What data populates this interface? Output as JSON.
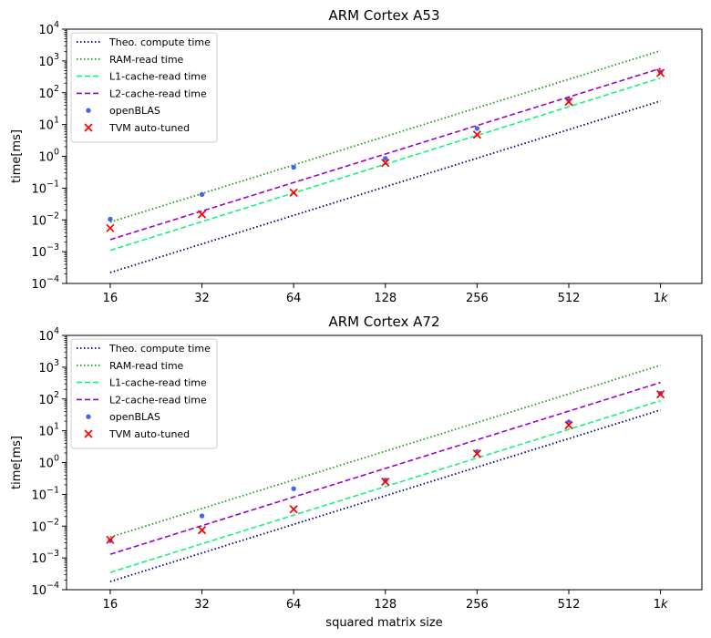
{
  "chart_data": [
    {
      "type": "line",
      "title": "ARM Cortex A53",
      "xlabel": "",
      "ylabel": "time[ms]",
      "x_scale": "log2",
      "y_scale": "log10",
      "x_ticks": [
        16,
        32,
        64,
        128,
        256,
        512,
        1024
      ],
      "x_tick_labels": [
        "16",
        "32",
        "64",
        "128",
        "256",
        "512",
        "1k"
      ],
      "y_ticks": [
        -4,
        -3,
        -2,
        -1,
        0,
        1,
        2,
        3,
        4
      ],
      "y_tick_labels": [
        "10^-4",
        "10^-3",
        "10^-2",
        "10^-1",
        "10^0",
        "10^1",
        "10^2",
        "10^3",
        "10^4"
      ],
      "xlim": [
        11.5,
        1400
      ],
      "ylim": [
        0.0001,
        10000
      ],
      "legend_position": "top-left",
      "grid": false,
      "series": [
        {
          "name": "Theo. compute time",
          "style": "dotted",
          "color": "#00007a",
          "x": [
            16,
            1024
          ],
          "y": [
            0.00022,
            55
          ]
        },
        {
          "name": "RAM-read time",
          "style": "dotted",
          "color": "#1a9c1a",
          "x": [
            16,
            1024
          ],
          "y": [
            0.0085,
            2100
          ]
        },
        {
          "name": "L1-cache-read time",
          "style": "dashed",
          "color": "#16f27e",
          "x": [
            16,
            1024
          ],
          "y": [
            0.0011,
            290
          ]
        },
        {
          "name": "L2-cache-read time",
          "style": "dashed",
          "color": "#9b00d3",
          "x": [
            16,
            1024
          ],
          "y": [
            0.0024,
            580
          ]
        },
        {
          "name": "openBLAS",
          "style": "dots",
          "color": "#4169e1",
          "x": [
            16,
            32,
            64,
            128,
            256,
            512,
            1024
          ],
          "y": [
            0.0105,
            0.063,
            0.45,
            0.85,
            7.5,
            60,
            450
          ]
        },
        {
          "name": "TVM auto-tuned",
          "style": "x-markers",
          "color": "#ff0000",
          "x": [
            16,
            32,
            64,
            128,
            256,
            512,
            1024
          ],
          "y": [
            0.0055,
            0.015,
            0.072,
            0.62,
            4.8,
            52,
            420
          ]
        }
      ]
    },
    {
      "type": "line",
      "title": "ARM Cortex A72",
      "xlabel": "squared matrix size",
      "ylabel": "time[ms]",
      "x_scale": "log2",
      "y_scale": "log10",
      "x_ticks": [
        16,
        32,
        64,
        128,
        256,
        512,
        1024
      ],
      "x_tick_labels": [
        "16",
        "32",
        "64",
        "128",
        "256",
        "512",
        "1k"
      ],
      "y_ticks": [
        -4,
        -3,
        -2,
        -1,
        0,
        1,
        2,
        3,
        4
      ],
      "y_tick_labels": [
        "10^-4",
        "10^-3",
        "10^-2",
        "10^-1",
        "10^0",
        "10^1",
        "10^2",
        "10^3",
        "10^4"
      ],
      "xlim": [
        11.5,
        1400
      ],
      "ylim": [
        0.0001,
        10000
      ],
      "legend_position": "top-left",
      "grid": false,
      "series": [
        {
          "name": "Theo. compute time",
          "style": "dotted",
          "color": "#00007a",
          "x": [
            16,
            1024
          ],
          "y": [
            0.00018,
            45
          ]
        },
        {
          "name": "RAM-read time",
          "style": "dotted",
          "color": "#1a9c1a",
          "x": [
            16,
            1024
          ],
          "y": [
            0.0045,
            1150
          ]
        },
        {
          "name": "L1-cache-read time",
          "style": "dashed",
          "color": "#16f27e",
          "x": [
            16,
            1024
          ],
          "y": [
            0.00035,
            88
          ]
        },
        {
          "name": "L2-cache-read time",
          "style": "dashed",
          "color": "#9b00d3",
          "x": [
            16,
            1024
          ],
          "y": [
            0.0013,
            330
          ]
        },
        {
          "name": "openBLAS",
          "style": "dots",
          "color": "#4169e1",
          "x": [
            16,
            32,
            64,
            128,
            256,
            512,
            1024
          ],
          "y": [
            0.0035,
            0.021,
            0.15,
            0.28,
            2.2,
            19,
            150
          ]
        },
        {
          "name": "TVM auto-tuned",
          "style": "x-markers",
          "color": "#ff0000",
          "x": [
            16,
            32,
            64,
            128,
            256,
            512,
            1024
          ],
          "y": [
            0.0037,
            0.0075,
            0.034,
            0.25,
            1.9,
            15,
            140
          ]
        }
      ]
    }
  ]
}
